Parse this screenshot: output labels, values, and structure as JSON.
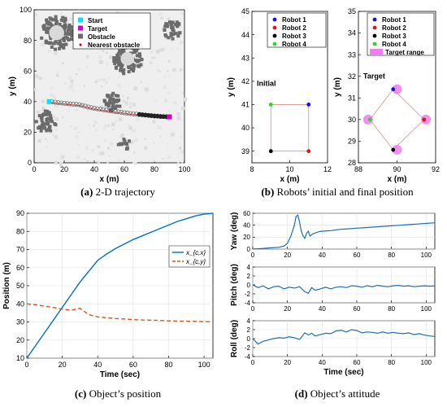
{
  "captions": {
    "a": {
      "letter": "(a)",
      "text": " 2-D trajectory"
    },
    "b": {
      "letter": "(b)",
      "text": " Robots’ initial and final position"
    },
    "c": {
      "letter": "(c)",
      "text": " Object’s position"
    },
    "d": {
      "letter": "(d)",
      "text": " Object’s attitude"
    }
  },
  "colors": {
    "start": "#00e5ff",
    "target": "#d400d4",
    "obstacle": "#6b6b6b",
    "nearest": "#cc0000",
    "robot1": "#1010ee",
    "robot2": "#ee1010",
    "robot3": "#000000",
    "robot4": "#22dd22",
    "xcx": "#0072bd",
    "xcy": "#d95319",
    "attitude": "#1f6fb0",
    "target_range": "#f07cf0"
  },
  "chart_data": [
    {
      "type": "scatter",
      "panel": "a",
      "xlabel": "x (m)",
      "ylabel": "y (m)",
      "xlim": [
        0,
        100
      ],
      "ylim": [
        0,
        100
      ],
      "xticks": [
        "0",
        "20",
        "40",
        "60",
        "80",
        "100"
      ],
      "yticks": [
        "0",
        "20",
        "40",
        "60",
        "80",
        "100"
      ],
      "legend_position": "top-center",
      "legend": [
        "Start",
        "Target",
        "Obstacle",
        "Nearest obstacle"
      ],
      "start": [
        10,
        40
      ],
      "target": [
        90,
        30
      ],
      "trajectory_x": [
        10,
        12,
        14,
        16,
        18,
        20,
        22,
        24,
        26,
        28,
        30,
        32,
        34,
        36,
        38,
        40,
        42,
        44,
        46,
        48,
        50,
        52,
        54,
        56,
        58,
        60,
        62,
        64,
        66,
        68,
        70,
        72,
        74,
        76,
        78,
        80,
        82,
        84,
        86,
        88,
        90
      ],
      "trajectory_y": [
        40,
        39.8,
        39.6,
        39.3,
        39.1,
        38.9,
        38.7,
        38.5,
        38.3,
        38.2,
        38,
        37.5,
        37,
        36.5,
        36,
        35.6,
        35.3,
        35,
        34.7,
        34.4,
        34.1,
        33.8,
        33.5,
        33.3,
        33,
        32.7,
        32.5,
        32.2,
        32,
        31.8,
        31.6,
        31.4,
        31.2,
        31,
        30.8,
        30.6,
        30.5,
        30.3,
        30.2,
        30.1,
        30
      ],
      "obstacle_clusters": [
        {
          "cx": 15,
          "cy": 85,
          "r": 11
        },
        {
          "cx": 62,
          "cy": 68,
          "r": 10
        },
        {
          "cx": 52,
          "cy": 40,
          "r": 6
        },
        {
          "cx": 92,
          "cy": 87,
          "r": 6
        },
        {
          "cx": 8,
          "cy": 27,
          "r": 7
        },
        {
          "cx": 60,
          "cy": 12,
          "r": 4
        }
      ]
    },
    {
      "type": "scatter",
      "panel": "b-initial",
      "annotation": "Initial",
      "xlabel": "x (m)",
      "ylabel": "y (m)",
      "xlim": [
        8,
        12
      ],
      "ylim": [
        38.5,
        45
      ],
      "xticks": [
        "8",
        "10",
        "12"
      ],
      "yticks": [
        "39",
        "40",
        "41",
        "42",
        "43",
        "44",
        "45"
      ],
      "legend_position": "top-right",
      "series": [
        {
          "name": "Robot 1",
          "x": [
            11
          ],
          "y": [
            41
          ]
        },
        {
          "name": "Robot 2",
          "x": [
            11
          ],
          "y": [
            39
          ]
        },
        {
          "name": "Robot 3",
          "x": [
            9
          ],
          "y": [
            39
          ]
        },
        {
          "name": "Robot 4",
          "x": [
            9
          ],
          "y": [
            41
          ]
        }
      ]
    },
    {
      "type": "scatter",
      "panel": "b-target",
      "annotation": "Target",
      "xlabel": "x (m)",
      "ylabel": "y (m)",
      "xlim": [
        88,
        92
      ],
      "ylim": [
        28,
        35
      ],
      "xticks": [
        "88",
        "90",
        "92"
      ],
      "yticks": [
        "28",
        "29",
        "30",
        "31",
        "32",
        "33",
        "34",
        "35"
      ],
      "legend_position": "top-right",
      "series": [
        {
          "name": "Robot 1",
          "x": [
            89.8
          ],
          "y": [
            31.4
          ]
        },
        {
          "name": "Robot 2",
          "x": [
            91.4
          ],
          "y": [
            30.0
          ]
        },
        {
          "name": "Robot 3",
          "x": [
            89.8
          ],
          "y": [
            28.6
          ]
        },
        {
          "name": "Robot 4",
          "x": [
            88.6
          ],
          "y": [
            30.0
          ]
        }
      ],
      "target_range": {
        "name": "Target range",
        "points": [
          [
            90,
            31.4
          ],
          [
            91.5,
            30
          ],
          [
            90,
            28.6
          ],
          [
            88.5,
            30
          ]
        ]
      }
    },
    {
      "type": "line",
      "panel": "c",
      "xlabel": "Time (sec)",
      "ylabel": "Position (m)",
      "xlim": [
        0,
        105
      ],
      "ylim": [
        10,
        90
      ],
      "xticks": [
        "0",
        "20",
        "40",
        "60",
        "80",
        "100"
      ],
      "yticks": [
        "10",
        "20",
        "30",
        "40",
        "50",
        "60",
        "70",
        "80",
        "90"
      ],
      "legend_position": "center-right",
      "x": [
        0,
        5,
        10,
        15,
        20,
        25,
        30,
        35,
        40,
        45,
        50,
        55,
        60,
        65,
        70,
        75,
        80,
        85,
        90,
        95,
        100,
        105
      ],
      "series": [
        {
          "name": "x_{c,x}",
          "values": [
            10,
            17,
            24,
            31,
            38,
            45,
            52,
            58,
            64,
            67.5,
            70.5,
            73,
            75.5,
            77.5,
            79.5,
            81.5,
            83.5,
            85.5,
            87,
            88.5,
            89.5,
            90
          ]
        },
        {
          "name": "x_{c,y}",
          "values": [
            40,
            39.5,
            38.7,
            38,
            37,
            36.5,
            37.5,
            34,
            32.8,
            32.3,
            31.9,
            31.6,
            31.3,
            31.1,
            31,
            30.8,
            30.6,
            30.5,
            30.4,
            30.3,
            30.2,
            30.1
          ]
        }
      ]
    },
    {
      "type": "line",
      "panel": "d-yaw",
      "xlabel": "",
      "ylabel": "Yaw (deg)",
      "xlim": [
        0,
        105
      ],
      "ylim": [
        0,
        60
      ],
      "xticks": [
        "0",
        "20",
        "40",
        "60",
        "80",
        "100"
      ],
      "yticks": [
        "0",
        "20",
        "40",
        "60"
      ],
      "x": [
        0,
        5,
        10,
        15,
        18,
        20,
        22,
        24,
        25,
        26,
        27,
        28,
        29,
        30,
        31,
        32,
        33,
        35,
        38,
        40,
        45,
        50,
        55,
        60,
        65,
        70,
        75,
        80,
        85,
        90,
        95,
        100,
        105
      ],
      "values": [
        0,
        1,
        2,
        3,
        5,
        10,
        22,
        40,
        55,
        57,
        45,
        30,
        22,
        18,
        26,
        30,
        22,
        26,
        29,
        30,
        31,
        33,
        34,
        35,
        36,
        37,
        38,
        39,
        40,
        41,
        42,
        43,
        44
      ]
    },
    {
      "type": "line",
      "panel": "d-pitch",
      "xlabel": "",
      "ylabel": "Pitch (deg)",
      "xlim": [
        0,
        105
      ],
      "ylim": [
        -4,
        4
      ],
      "xticks": [
        "0",
        "20",
        "40",
        "60",
        "80",
        "100"
      ],
      "yticks": [
        "-4",
        "-2",
        "0",
        "2",
        "4"
      ],
      "x": [
        0,
        3,
        6,
        9,
        12,
        15,
        18,
        21,
        24,
        27,
        30,
        32,
        34,
        36,
        39,
        42,
        45,
        48,
        51,
        54,
        57,
        60,
        63,
        66,
        69,
        72,
        75,
        78,
        81,
        84,
        87,
        90,
        93,
        96,
        99,
        102,
        105
      ],
      "values": [
        0,
        -0.6,
        -0.2,
        -0.9,
        -0.4,
        -0.3,
        -0.9,
        -0.5,
        -0.7,
        -0.4,
        -1.5,
        -1.9,
        -0.6,
        -1.2,
        -0.9,
        -0.5,
        -0.9,
        -0.5,
        -0.4,
        -0.6,
        -0.2,
        -0.3,
        -0.5,
        -0.2,
        -0.4,
        -0.1,
        -0.3,
        -0.4,
        -0.2,
        -0.1,
        -0.3,
        -0.2,
        -0.4,
        -0.3,
        -0.2,
        -0.3,
        -0.2
      ]
    },
    {
      "type": "line",
      "panel": "d-roll",
      "xlabel": "Time (sec)",
      "ylabel": "Roll (deg)",
      "xlim": [
        0,
        105
      ],
      "ylim": [
        -4,
        4
      ],
      "xticks": [
        "0",
        "20",
        "40",
        "60",
        "80",
        "100"
      ],
      "yticks": [
        "-4",
        "-2",
        "0",
        "2",
        "4"
      ],
      "x": [
        0,
        3,
        6,
        9,
        12,
        15,
        18,
        21,
        24,
        27,
        30,
        32,
        34,
        36,
        39,
        42,
        45,
        48,
        51,
        54,
        57,
        60,
        63,
        66,
        69,
        72,
        75,
        78,
        81,
        84,
        87,
        90,
        93,
        96,
        99,
        102,
        105
      ],
      "values": [
        0,
        -1.2,
        -0.6,
        -0.3,
        0,
        0.2,
        0.1,
        0.4,
        0.2,
        -0.2,
        1.3,
        0.8,
        1.2,
        0.6,
        0.9,
        1.2,
        1.1,
        1.7,
        1.9,
        1.5,
        2.0,
        1.8,
        1.3,
        1.5,
        1.4,
        1.2,
        1.5,
        1.2,
        1.4,
        1.2,
        1.1,
        1.3,
        0.9,
        1.1,
        0.8,
        0.6,
        0.5
      ]
    }
  ]
}
